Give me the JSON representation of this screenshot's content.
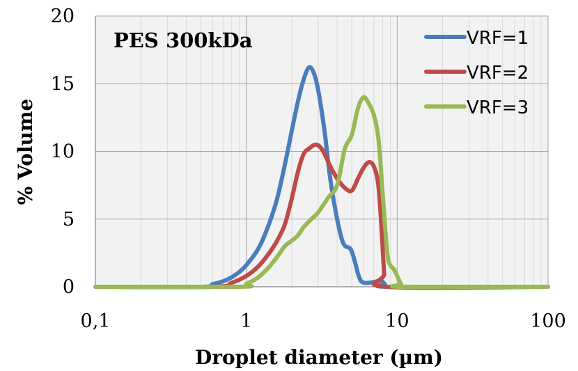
{
  "chart_data": {
    "type": "line",
    "title": "PES 300kDa",
    "xlabel": "Droplet diameter (µm)",
    "ylabel": "% Volume",
    "xscale": "log",
    "xlim": [
      0.1,
      100
    ],
    "ylim": [
      0,
      20
    ],
    "xticks": [
      0.1,
      1,
      10,
      100
    ],
    "xtick_labels": [
      "0,1",
      "1",
      "10",
      "100"
    ],
    "yticks": [
      0,
      5,
      10,
      15,
      20
    ],
    "ytick_labels": [
      "0",
      "5",
      "10",
      "15",
      "20"
    ],
    "grid": true,
    "legend_position": "top-right",
    "series": [
      {
        "name": "VRF=1",
        "color": "#4a7ebb",
        "points": [
          [
            0.1,
            0
          ],
          [
            0.5,
            0
          ],
          [
            0.6,
            0.2
          ],
          [
            0.7,
            0.4
          ],
          [
            0.8,
            0.7
          ],
          [
            0.9,
            1.1
          ],
          [
            1.0,
            1.6
          ],
          [
            1.2,
            2.8
          ],
          [
            1.4,
            4.5
          ],
          [
            1.6,
            6.5
          ],
          [
            1.8,
            9.0
          ],
          [
            2.0,
            11.5
          ],
          [
            2.2,
            13.7
          ],
          [
            2.4,
            15.3
          ],
          [
            2.6,
            16.2
          ],
          [
            2.8,
            15.8
          ],
          [
            3.0,
            14.5
          ],
          [
            3.3,
            11.5
          ],
          [
            3.6,
            8.0
          ],
          [
            4.0,
            5.0
          ],
          [
            4.4,
            3.2
          ],
          [
            4.9,
            2.8
          ],
          [
            5.2,
            2.0
          ],
          [
            5.6,
            0.7
          ],
          [
            6.0,
            0.3
          ],
          [
            7.0,
            0.35
          ],
          [
            7.8,
            0.45
          ],
          [
            8.3,
            0.2
          ],
          [
            9.0,
            0
          ],
          [
            100,
            0
          ]
        ]
      },
      {
        "name": "VRF=2",
        "color": "#be4b48",
        "points": [
          [
            0.1,
            0
          ],
          [
            0.6,
            0
          ],
          [
            0.8,
            0.3
          ],
          [
            1.0,
            0.8
          ],
          [
            1.2,
            1.5
          ],
          [
            1.4,
            2.4
          ],
          [
            1.6,
            3.4
          ],
          [
            1.8,
            4.6
          ],
          [
            2.0,
            6.5
          ],
          [
            2.2,
            8.5
          ],
          [
            2.4,
            9.8
          ],
          [
            2.6,
            10.2
          ],
          [
            2.9,
            10.5
          ],
          [
            3.2,
            10.1
          ],
          [
            3.6,
            8.9
          ],
          [
            4.0,
            8.0
          ],
          [
            4.5,
            7.3
          ],
          [
            5.0,
            7.1
          ],
          [
            5.5,
            8.0
          ],
          [
            6.0,
            8.8
          ],
          [
            6.5,
            9.2
          ],
          [
            7.0,
            8.9
          ],
          [
            7.5,
            7.5
          ],
          [
            7.9,
            4.0
          ],
          [
            8.2,
            1.0
          ],
          [
            8.5,
            0
          ],
          [
            100,
            0
          ]
        ]
      },
      {
        "name": "VRF=3",
        "color": "#98b954",
        "points": [
          [
            0.1,
            0
          ],
          [
            0.9,
            0
          ],
          [
            1.0,
            0.2
          ],
          [
            1.2,
            0.7
          ],
          [
            1.4,
            1.4
          ],
          [
            1.6,
            2.2
          ],
          [
            1.8,
            3.0
          ],
          [
            2.0,
            3.4
          ],
          [
            2.2,
            3.8
          ],
          [
            2.4,
            4.4
          ],
          [
            2.7,
            5.0
          ],
          [
            3.0,
            5.5
          ],
          [
            3.5,
            6.6
          ],
          [
            4.0,
            7.5
          ],
          [
            4.5,
            10.2
          ],
          [
            5.0,
            11.2
          ],
          [
            5.5,
            13.2
          ],
          [
            6.0,
            14.0
          ],
          [
            6.5,
            13.5
          ],
          [
            7.0,
            12.7
          ],
          [
            7.5,
            11.0
          ],
          [
            8.0,
            7.0
          ],
          [
            8.6,
            2.5
          ],
          [
            9.0,
            1.6
          ],
          [
            9.5,
            1.3
          ],
          [
            10.0,
            0.8
          ],
          [
            10.6,
            0.2
          ],
          [
            11.0,
            0
          ],
          [
            100,
            0
          ]
        ]
      }
    ]
  }
}
